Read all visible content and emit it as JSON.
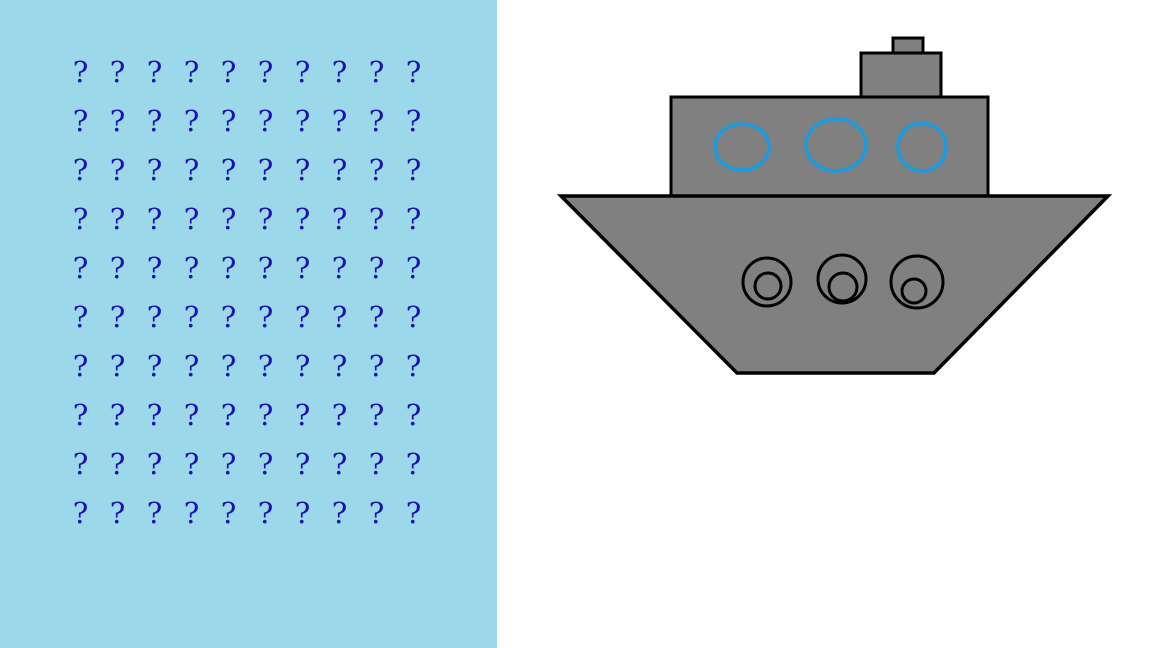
{
  "colors": {
    "board_background": "#9bd9ea",
    "page_background": "#ffffff",
    "question_mark": "#1a10b4",
    "ship_fill": "#808080",
    "ship_outline": "#000000",
    "window_ring": "#1a9de0"
  },
  "board": {
    "rows": 10,
    "cols": 10,
    "cell_symbol": "?"
  },
  "ship": {
    "window_count": 3,
    "porthole_count": 3
  }
}
